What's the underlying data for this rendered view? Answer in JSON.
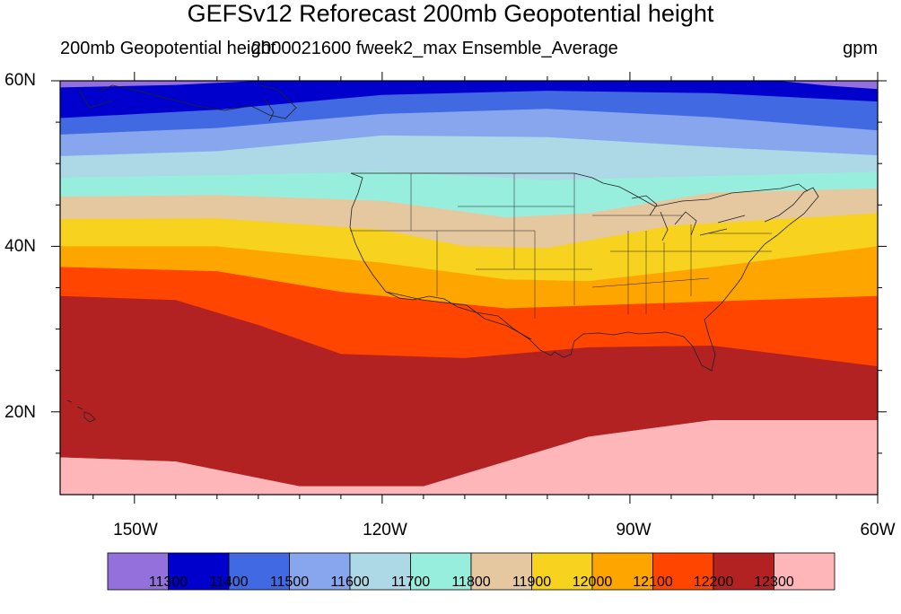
{
  "title": "GEFSv12 Reforecast 200mb Geopotential height",
  "subtitle_left": "200mb Geopotential height",
  "subtitle_center": "2000021600 fweek2_max Ensemble_Average",
  "units": "gpm",
  "map": {
    "lon_range": [
      -159,
      -60
    ],
    "lat_range": [
      10,
      60
    ],
    "x_ticks": [
      {
        "lon": -150,
        "label": "150W"
      },
      {
        "lon": -120,
        "label": "120W"
      },
      {
        "lon": -90,
        "label": "90W"
      },
      {
        "lon": -60,
        "label": "60W"
      }
    ],
    "y_ticks": [
      {
        "lat": 60,
        "label": "60N"
      },
      {
        "lat": 40,
        "label": "40N"
      },
      {
        "lat": 20,
        "label": "20N"
      }
    ]
  },
  "colorbar": {
    "colors": [
      "#9370db",
      "#0000cd",
      "#4169e1",
      "#87a6ee",
      "#add8e6",
      "#98eedd",
      "#e6c8a0",
      "#f7d21e",
      "#ffa500",
      "#ff4500",
      "#b22222",
      "#ffb6b9"
    ],
    "levels": [
      "11300",
      "11400",
      "11500",
      "11600",
      "11700",
      "11800",
      "11900",
      "12000",
      "12100",
      "12200",
      "12300"
    ]
  },
  "chart_data": {
    "type": "heatmap",
    "title": "GEFSv12 Reforecast 200mb Geopotential height",
    "variable": "200mb Geopotential height",
    "run": "2000021600 fweek2_max Ensemble_Average",
    "units": "gpm",
    "contour_levels": [
      11300,
      11400,
      11500,
      11600,
      11700,
      11800,
      11900,
      12000,
      12100,
      12200,
      12300
    ],
    "contour_lines": [
      {
        "level": 11400,
        "points": [
          [
            -159,
            55.5
          ],
          [
            -140,
            56.5
          ],
          [
            -120,
            58.3
          ],
          [
            -100,
            58.8
          ],
          [
            -80,
            58.5
          ],
          [
            -60,
            57.5
          ]
        ]
      },
      {
        "level": 11500,
        "points": [
          [
            -159,
            53.5
          ],
          [
            -140,
            54.3
          ],
          [
            -120,
            56.0
          ],
          [
            -100,
            56.6
          ],
          [
            -80,
            55.6
          ],
          [
            -60,
            54.0
          ]
        ]
      },
      {
        "level": 11600,
        "points": [
          [
            -159,
            50.9
          ],
          [
            -140,
            51.5
          ],
          [
            -120,
            53.4
          ],
          [
            -100,
            53.2
          ],
          [
            -80,
            52.0
          ],
          [
            -60,
            51.0
          ]
        ]
      },
      {
        "level": 11700,
        "points": [
          [
            -159,
            48.3
          ],
          [
            -140,
            48.6
          ],
          [
            -120,
            49.0
          ],
          [
            -100,
            48.0
          ],
          [
            -80,
            48.5
          ],
          [
            -60,
            49.0
          ]
        ]
      },
      {
        "level": 11800,
        "points": [
          [
            -159,
            46.0
          ],
          [
            -140,
            46.2
          ],
          [
            -120,
            45.5
          ],
          [
            -105,
            43.5
          ],
          [
            -95,
            44.0
          ],
          [
            -80,
            46.5
          ],
          [
            -60,
            47.0
          ]
        ]
      },
      {
        "level": 11900,
        "points": [
          [
            -159,
            43.3
          ],
          [
            -140,
            43.4
          ],
          [
            -120,
            42.0
          ],
          [
            -110,
            40.0
          ],
          [
            -100,
            39.8
          ],
          [
            -85,
            42.5
          ],
          [
            -60,
            44.0
          ]
        ]
      },
      {
        "level": 12000,
        "points": [
          [
            -159,
            40.0
          ],
          [
            -140,
            40.0
          ],
          [
            -120,
            38.0
          ],
          [
            -105,
            36.0
          ],
          [
            -95,
            35.8
          ],
          [
            -80,
            37.5
          ],
          [
            -60,
            40.0
          ]
        ]
      },
      {
        "level": 12100,
        "points": [
          [
            -159,
            37.5
          ],
          [
            -140,
            37.0
          ],
          [
            -125,
            34.5
          ],
          [
            -105,
            32.5
          ],
          [
            -90,
            33.0
          ],
          [
            -75,
            33.5
          ],
          [
            -60,
            34.0
          ]
        ]
      },
      {
        "level": 12200,
        "points": [
          [
            -159,
            34.0
          ],
          [
            -145,
            33.5
          ],
          [
            -135,
            30.5
          ],
          [
            -125,
            27.0
          ],
          [
            -110,
            26.5
          ],
          [
            -95,
            27.8
          ],
          [
            -80,
            28.0
          ],
          [
            -60,
            25.5
          ]
        ]
      },
      {
        "level": 12300,
        "points": [
          [
            -159,
            14.5
          ],
          [
            -145,
            14.0
          ],
          [
            -130,
            11.0
          ],
          [
            -115,
            11.0
          ],
          [
            -105,
            14.0
          ],
          [
            -95,
            17.0
          ],
          [
            -80,
            19.0
          ],
          [
            -60,
            19.0
          ]
        ]
      }
    ]
  }
}
